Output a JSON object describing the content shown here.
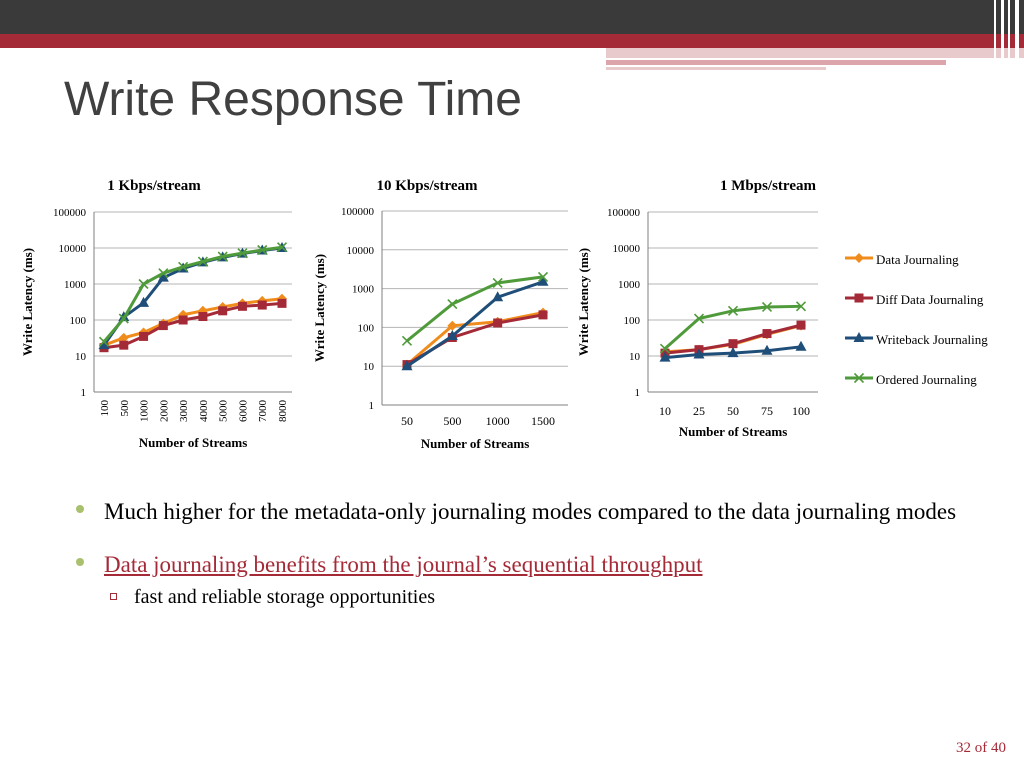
{
  "slide": {
    "title": "Write Response Time",
    "page_number": "32 of 40"
  },
  "bullets": [
    {
      "text": "Much higher for the metadata-only journaling modes compared to the data journaling modes"
    },
    {
      "text": "Data journaling benefits from the journal’s sequential throughput",
      "sub": "fast and reliable storage opportunities"
    }
  ],
  "legend": {
    "items": [
      {
        "name": "Data Journaling",
        "color": "#f08c1c",
        "marker": "diamond"
      },
      {
        "name": "Diff Data Journaling",
        "color": "#a52a37",
        "marker": "square"
      },
      {
        "name": "Writeback Journaling",
        "color": "#1f4e79",
        "marker": "triangle"
      },
      {
        "name": "Ordered Journaling",
        "color": "#4f9a3a",
        "marker": "x"
      }
    ]
  },
  "chart_data": [
    {
      "type": "line",
      "title": "1 Kbps/stream",
      "xlabel": "Number of Streams",
      "ylabel": "Write Latency (ms)",
      "yscale": "log",
      "ylim": [
        1,
        100000
      ],
      "yticks": [
        "1",
        "10",
        "100",
        "1000",
        "10000",
        "100000"
      ],
      "categories": [
        "100",
        "500",
        "1000",
        "2000",
        "3000",
        "4000",
        "5000",
        "6000",
        "7000",
        "8000"
      ],
      "xtick_rotation": "vertical",
      "series": [
        {
          "name": "Data Journaling",
          "values": [
            20,
            32,
            45,
            80,
            140,
            180,
            230,
            290,
            340,
            390
          ]
        },
        {
          "name": "Diff Data Journaling",
          "values": [
            17,
            20,
            35,
            70,
            100,
            125,
            180,
            240,
            260,
            290
          ]
        },
        {
          "name": "Writeback Journaling",
          "values": [
            20,
            120,
            300,
            1500,
            2700,
            4000,
            5500,
            7000,
            8500,
            10000
          ]
        },
        {
          "name": "Ordered Journaling",
          "values": [
            25,
            110,
            1000,
            2000,
            3000,
            4200,
            5800,
            7200,
            8800,
            10500
          ]
        }
      ]
    },
    {
      "type": "line",
      "title": "10 Kbps/stream",
      "xlabel": "Number of Streams",
      "ylabel": "Write Latency (ms)",
      "yscale": "log",
      "ylim": [
        1,
        100000
      ],
      "yticks": [
        "1",
        "10",
        "100",
        "1000",
        "10000",
        "100000"
      ],
      "categories": [
        "50",
        "500",
        "1000",
        "1500"
      ],
      "series": [
        {
          "name": "Data Journaling",
          "values": [
            11,
            110,
            140,
            240
          ]
        },
        {
          "name": "Diff Data Journaling",
          "values": [
            11,
            55,
            130,
            210
          ]
        },
        {
          "name": "Writeback Journaling",
          "values": [
            10,
            60,
            600,
            1500
          ]
        },
        {
          "name": "Ordered Journaling",
          "values": [
            45,
            400,
            1400,
            2000
          ]
        }
      ]
    },
    {
      "type": "line",
      "title": "1 Mbps/stream",
      "xlabel": "Number of Streams",
      "ylabel": "Write Latency (ms)",
      "yscale": "log",
      "ylim": [
        1,
        100000
      ],
      "yticks": [
        "1",
        "10",
        "100",
        "1000",
        "10000",
        "100000"
      ],
      "categories": [
        "10",
        "25",
        "50",
        "75",
        "100"
      ],
      "series": [
        {
          "name": "Data Journaling",
          "values": [
            13,
            15,
            21,
            40,
            70
          ]
        },
        {
          "name": "Diff Data Journaling",
          "values": [
            12,
            15,
            22,
            42,
            72
          ]
        },
        {
          "name": "Writeback Journaling",
          "values": [
            9,
            11,
            12,
            14,
            18
          ]
        },
        {
          "name": "Ordered Journaling",
          "values": [
            16,
            110,
            180,
            230,
            240
          ]
        }
      ]
    }
  ]
}
